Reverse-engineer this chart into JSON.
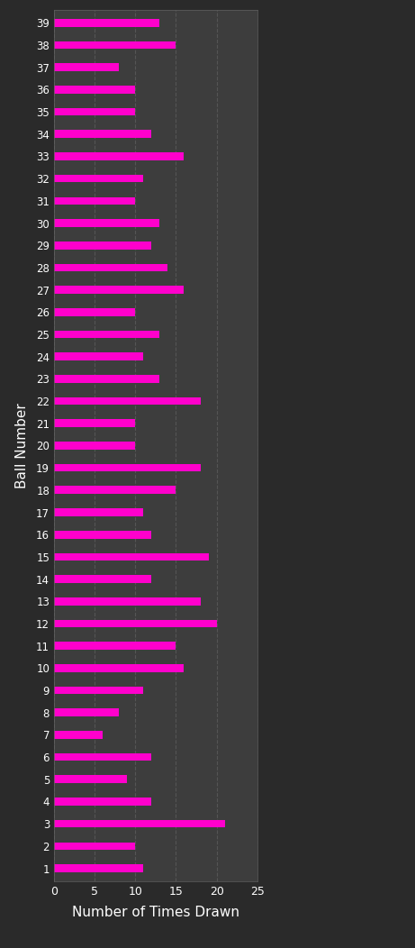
{
  "xlabel": "Number of Times Drawn",
  "ylabel": "Ball Number",
  "background_color": "#2a2a2a",
  "plot_bg_color": "#3d3d3d",
  "bar_color": "#ff00cc",
  "grid_color": "#606060",
  "text_color": "#ffffff",
  "xlim": [
    0,
    25
  ],
  "xticks": [
    0,
    5,
    10,
    15,
    20,
    25
  ],
  "balls": [
    1,
    2,
    3,
    4,
    5,
    6,
    7,
    8,
    9,
    10,
    11,
    12,
    13,
    14,
    15,
    16,
    17,
    18,
    19,
    20,
    21,
    22,
    23,
    24,
    25,
    26,
    27,
    28,
    29,
    30,
    31,
    32,
    33,
    34,
    35,
    36,
    37,
    38,
    39
  ],
  "values": [
    11,
    10,
    21,
    12,
    9,
    12,
    6,
    8,
    11,
    16,
    15,
    20,
    18,
    12,
    19,
    12,
    11,
    15,
    18,
    10,
    10,
    18,
    13,
    11,
    13,
    10,
    16,
    14,
    12,
    13,
    10,
    11,
    16,
    12,
    10,
    10,
    8,
    15,
    13
  ]
}
